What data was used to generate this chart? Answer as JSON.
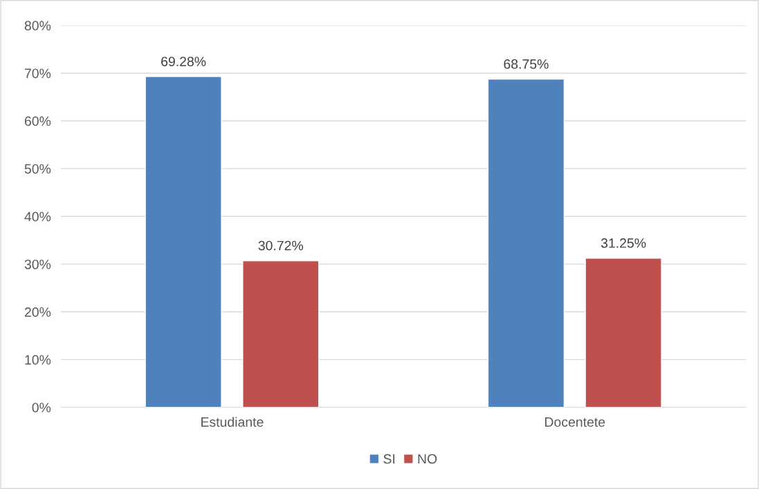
{
  "chart_data": {
    "type": "bar",
    "categories": [
      "Estudiante",
      "Docentete"
    ],
    "series": [
      {
        "name": "SI",
        "color": "#4f81bd",
        "values": [
          69.28,
          68.75
        ],
        "value_labels": [
          "69.28%",
          "68.75%"
        ]
      },
      {
        "name": "NO",
        "color": "#c0504d",
        "values": [
          30.72,
          31.25
        ],
        "value_labels": [
          "30.72%",
          "31.25%"
        ]
      }
    ],
    "ylim": [
      0,
      80
    ],
    "yticks": [
      {
        "value": 0,
        "label": "0%"
      },
      {
        "value": 10,
        "label": "10%"
      },
      {
        "value": 20,
        "label": "20%"
      },
      {
        "value": 30,
        "label": "30%"
      },
      {
        "value": 40,
        "label": "40%"
      },
      {
        "value": 50,
        "label": "50%"
      },
      {
        "value": 60,
        "label": "60%"
      },
      {
        "value": 70,
        "label": "70%"
      },
      {
        "value": 80,
        "label": "80%"
      }
    ],
    "grid": "y",
    "legend": "bottom"
  }
}
